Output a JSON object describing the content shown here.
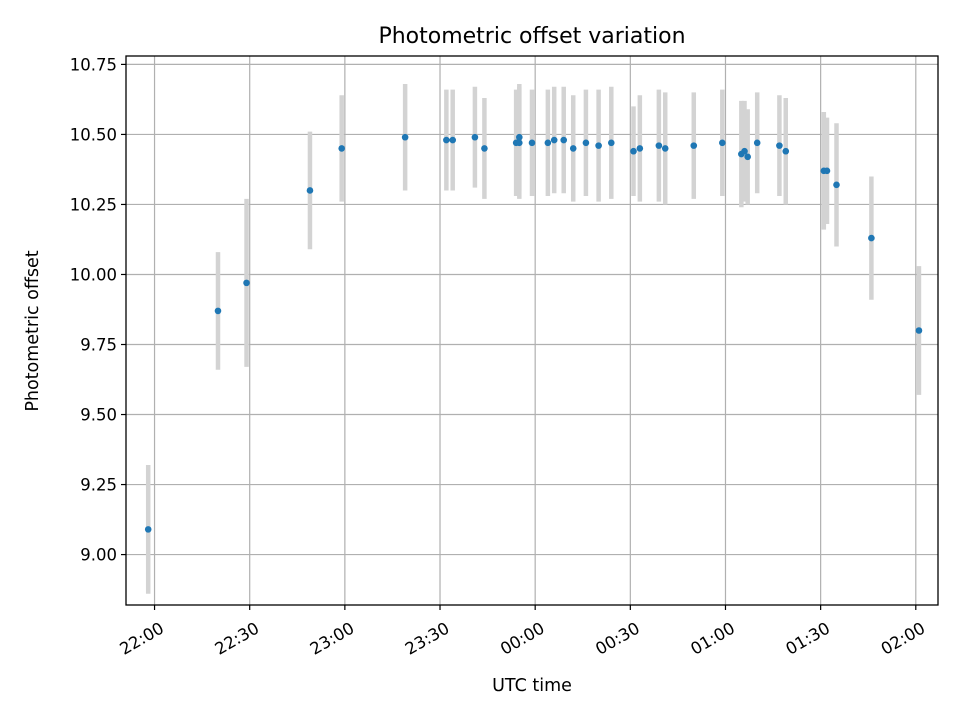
{
  "chart_data": {
    "type": "scatter",
    "title": "Photometric offset variation",
    "xlabel": "UTC time",
    "ylabel": "Photometric offset",
    "x_axis_type": "time",
    "xlim": [
      "21:51",
      "02:07"
    ],
    "ylim": [
      8.82,
      10.78
    ],
    "xticks": [
      "22:00",
      "22:30",
      "23:00",
      "23:30",
      "00:00",
      "00:30",
      "01:00",
      "01:30",
      "02:00"
    ],
    "yticks": [
      "9.00",
      "9.25",
      "9.50",
      "9.75",
      "10.00",
      "10.25",
      "10.50",
      "10.75"
    ],
    "grid": true,
    "legend": "none",
    "colors": {
      "point": "#1f77b4",
      "errorbar": "#d3d3d3"
    },
    "series": [
      {
        "points": [
          {
            "x": "21:58",
            "y": 9.09,
            "err": 0.23
          },
          {
            "x": "22:20",
            "y": 9.87,
            "err": 0.21
          },
          {
            "x": "22:29",
            "y": 9.97,
            "err": 0.3
          },
          {
            "x": "22:49",
            "y": 10.3,
            "err": 0.21
          },
          {
            "x": "22:59",
            "y": 10.45,
            "err": 0.19
          },
          {
            "x": "23:19",
            "y": 10.49,
            "err": 0.19
          },
          {
            "x": "23:32",
            "y": 10.48,
            "err": 0.18
          },
          {
            "x": "23:34",
            "y": 10.48,
            "err": 0.18
          },
          {
            "x": "23:41",
            "y": 10.49,
            "err": 0.18
          },
          {
            "x": "23:44",
            "y": 10.45,
            "err": 0.18
          },
          {
            "x": "23:54",
            "y": 10.47,
            "err": 0.19
          },
          {
            "x": "23:55",
            "y": 10.49,
            "err": 0.19
          },
          {
            "x": "23:55",
            "y": 10.47,
            "err": 0.2
          },
          {
            "x": "23:59",
            "y": 10.47,
            "err": 0.19
          },
          {
            "x": "00:04",
            "y": 10.47,
            "err": 0.19
          },
          {
            "x": "00:06",
            "y": 10.48,
            "err": 0.19
          },
          {
            "x": "00:09",
            "y": 10.48,
            "err": 0.19
          },
          {
            "x": "00:12",
            "y": 10.45,
            "err": 0.19
          },
          {
            "x": "00:16",
            "y": 10.47,
            "err": 0.19
          },
          {
            "x": "00:20",
            "y": 10.46,
            "err": 0.2
          },
          {
            "x": "00:24",
            "y": 10.47,
            "err": 0.2
          },
          {
            "x": "00:31",
            "y": 10.44,
            "err": 0.16
          },
          {
            "x": "00:33",
            "y": 10.45,
            "err": 0.19
          },
          {
            "x": "00:39",
            "y": 10.46,
            "err": 0.2
          },
          {
            "x": "00:41",
            "y": 10.45,
            "err": 0.2
          },
          {
            "x": "00:50",
            "y": 10.46,
            "err": 0.19
          },
          {
            "x": "00:59",
            "y": 10.47,
            "err": 0.19
          },
          {
            "x": "01:05",
            "y": 10.43,
            "err": 0.19
          },
          {
            "x": "01:06",
            "y": 10.44,
            "err": 0.18
          },
          {
            "x": "01:07",
            "y": 10.42,
            "err": 0.17
          },
          {
            "x": "01:10",
            "y": 10.47,
            "err": 0.18
          },
          {
            "x": "01:17",
            "y": 10.46,
            "err": 0.18
          },
          {
            "x": "01:19",
            "y": 10.44,
            "err": 0.19
          },
          {
            "x": "01:31",
            "y": 10.37,
            "err": 0.21
          },
          {
            "x": "01:32",
            "y": 10.37,
            "err": 0.19
          },
          {
            "x": "01:35",
            "y": 10.32,
            "err": 0.22
          },
          {
            "x": "01:46",
            "y": 10.13,
            "err": 0.22
          },
          {
            "x": "02:01",
            "y": 9.8,
            "err": 0.23
          }
        ]
      }
    ]
  }
}
